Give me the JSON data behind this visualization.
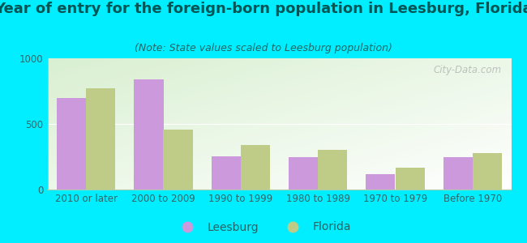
{
  "title": "Year of entry for the foreign-born population in Leesburg, Florida",
  "subtitle": "(Note: State values scaled to Leesburg population)",
  "categories": [
    "2010 or later",
    "2000 to 2009",
    "1990 to 1999",
    "1980 to 1989",
    "1970 to 1979",
    "Before 1970"
  ],
  "leesburg_values": [
    695,
    840,
    255,
    245,
    120,
    245
  ],
  "florida_values": [
    770,
    455,
    340,
    300,
    165,
    275
  ],
  "leesburg_color": "#cc99dd",
  "florida_color": "#bfcc88",
  "ylim": [
    0,
    1000
  ],
  "yticks": [
    0,
    500,
    1000
  ],
  "bg_outer": "#00eeff",
  "bar_width": 0.38,
  "title_fontsize": 13,
  "subtitle_fontsize": 9,
  "tick_fontsize": 8.5,
  "legend_fontsize": 10,
  "watermark": "City-Data.com"
}
